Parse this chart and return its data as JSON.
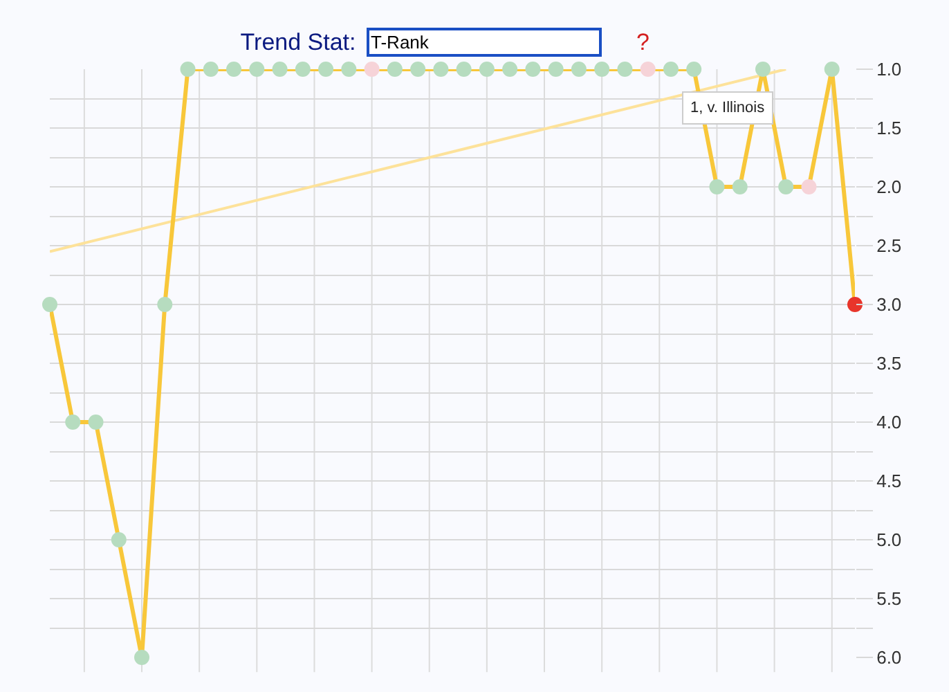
{
  "chart_data": {
    "type": "line",
    "title": "Trend Stat:",
    "tick_labels": "y",
    "grid": true,
    "categories": [
      null,
      null,
      null,
      null,
      null,
      null,
      null,
      null,
      null,
      null,
      null,
      null,
      null,
      null,
      null,
      null,
      null,
      null,
      null,
      null,
      null,
      null,
      null,
      null,
      null,
      null,
      null,
      null,
      null,
      null,
      null,
      null,
      null,
      null,
      null,
      null
    ],
    "ylim": [
      6.0,
      1.0
    ],
    "yticks": [
      {
        "value": 1,
        "label": "1.0"
      },
      {
        "value": 1.25,
        "label": null
      },
      {
        "value": 1.5,
        "label": "1.5"
      },
      {
        "value": 1.75,
        "label": null
      },
      {
        "value": 2,
        "label": "2.0"
      },
      {
        "value": 2.25,
        "label": null
      },
      {
        "value": 2.5,
        "label": "2.5"
      },
      {
        "value": 2.75,
        "label": null
      },
      {
        "value": 3,
        "label": "3.0"
      },
      {
        "value": 3.25,
        "label": null
      },
      {
        "value": 3.5,
        "label": "3.5"
      },
      {
        "value": 3.75,
        "label": null
      },
      {
        "value": 4,
        "label": "4.0"
      },
      {
        "value": 4.25,
        "label": null
      },
      {
        "value": 4.5,
        "label": "4.5"
      },
      {
        "value": 4.75,
        "label": null
      },
      {
        "value": 5,
        "label": "5.0"
      },
      {
        "value": 5.25,
        "label": null
      },
      {
        "value": 5.5,
        "label": "5.5"
      },
      {
        "value": 5.75,
        "label": null
      },
      {
        "value": 6,
        "label": "6.0"
      }
    ],
    "series": [
      {
        "color": "#f8c73a",
        "marker": "circle",
        "values": [
          3,
          4,
          4,
          5,
          6,
          3,
          1,
          1,
          1,
          1,
          1,
          1,
          1,
          1,
          1,
          1,
          1,
          1,
          1,
          1,
          1,
          1,
          1,
          1,
          1,
          1,
          1,
          1,
          1,
          2,
          2,
          1,
          2,
          2,
          1,
          3
        ],
        "colors": [
          "#b6dcbf",
          "#b6dcbf",
          "#b6dcbf",
          "#b6dcbf",
          "#b6dcbf",
          "#b6dcbf",
          "#b6dcbf",
          "#b6dcbf",
          "#b6dcbf",
          "#b6dcbf",
          "#b6dcbf",
          "#b6dcbf",
          "#b6dcbf",
          "#b6dcbf",
          "#f6d3d8",
          "#b6dcbf",
          "#b6dcbf",
          "#b6dcbf",
          "#b6dcbf",
          "#b6dcbf",
          "#b6dcbf",
          "#b6dcbf",
          "#b6dcbf",
          "#b6dcbf",
          "#b6dcbf",
          "#b6dcbf",
          "#f6d3d8",
          "#b6dcbf",
          "#b6dcbf",
          "#b6dcbf",
          "#b6dcbf",
          "#b6dcbf",
          "#b6dcbf",
          "#f6d3d8",
          "#b6dcbf",
          "#e8352b"
        ]
      },
      {
        "color": "#fde29a",
        "marker": "none",
        "values": [
          2.55,
          null,
          null,
          null,
          null,
          null,
          null,
          null,
          null,
          null,
          null,
          null,
          null,
          null,
          null,
          null,
          null,
          null,
          null,
          null,
          null,
          null,
          null,
          null,
          null,
          null,
          null,
          null,
          null,
          null,
          null,
          null,
          1.0,
          null,
          null,
          null
        ]
      }
    ],
    "annotations": [
      "T-Rank",
      "?",
      "1, v. Illinois"
    ]
  }
}
